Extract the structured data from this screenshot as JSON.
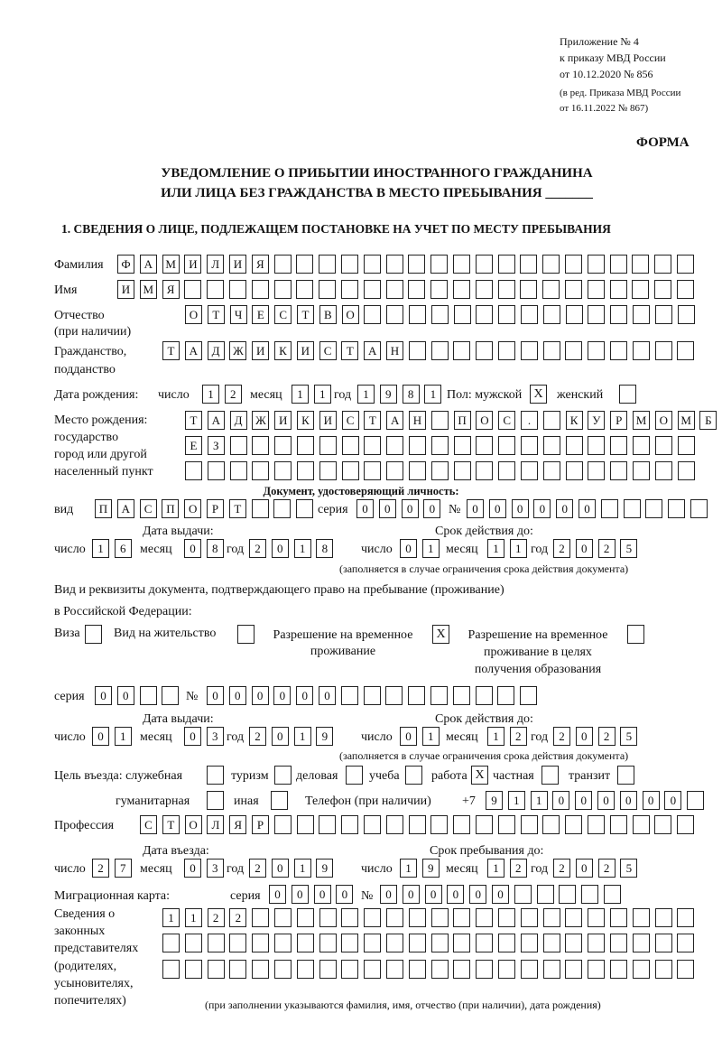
{
  "header": {
    "appendix": "Приложение № 4",
    "order": "к приказу МВД России",
    "order_date": "от 10.12.2020 № 856",
    "edition1": "(в ред. Приказа МВД России",
    "edition2": "от 16.11.2022 № 867)",
    "forma": "ФОРМА",
    "title1": "УВЕДОМЛЕНИЕ О ПРИБЫТИИ ИНОСТРАННОГО ГРАЖДАНИНА",
    "title2": "ИЛИ ЛИЦА БЕЗ ГРАЖДАНСТВА В МЕСТО ПРЕБЫВАНИЯ _______",
    "section1": "1. СВЕДЕНИЯ О ЛИЦЕ, ПОДЛЕЖАЩЕМ ПОСТАНОВКЕ НА УЧЕТ ПО МЕСТУ ПРЕБЫВАНИЯ"
  },
  "labels": {
    "surname": "Фамилия",
    "name": "Имя",
    "patronymic1": "Отчество",
    "patronymic2": "(при наличии)",
    "citizenship1": "Гражданство,",
    "citizenship2": "подданство",
    "dob": "Дата рождения:",
    "day": "число",
    "month": "месяц",
    "year": "год",
    "sex": "Пол: мужской",
    "female": "женский",
    "pob1": "Место рождения:",
    "pob2": "государство",
    "pob3": "город или другой",
    "pob4": "населенный пункт",
    "id_doc": "Документ, удостоверяющий личность:",
    "kind": "вид",
    "series": "серия",
    "number": "№",
    "issue_date": "Дата выдачи:",
    "valid_until": "Срок действия до:",
    "validity_note": "(заполняется в случае ограничения срока действия документа)",
    "stay_doc1": "Вид и реквизиты документа, подтверждающего право на пребывание (проживание)",
    "stay_doc2": "в Российской Федерации:",
    "visa": "Виза",
    "residence": "Вид на жительство",
    "trp1": "Разрешение на временное",
    "trp2": "проживание",
    "trp_edu1": "Разрешение на временное",
    "trp_edu2": "проживание в целях",
    "trp_edu3": "получения образования",
    "purpose": "Цель въезда: служебная",
    "tourism": "туризм",
    "business": "деловая",
    "study": "учеба",
    "work": "работа",
    "private": "частная",
    "transit": "транзит",
    "humanitarian": "гуманитарная",
    "other": "иная",
    "phone": "Телефон (при наличии)",
    "phone_prefix": "+7",
    "profession": "Профессия",
    "entry_date": "Дата въезда:",
    "stay_until": "Срок пребывания до:",
    "migration_card": "Миграционная карта:",
    "reps1": "Сведения о",
    "reps2": "законных",
    "reps3": "представителях",
    "reps4": "(родителях,",
    "reps5": "усыновителях,",
    "reps6": "попечителях)",
    "reps_note": "(при заполнении указываются фамилия, имя, отчество (при наличии), дата рождения)"
  },
  "person": {
    "surname": "ФАМИЛИЯ",
    "name": "ИМЯ",
    "patronymic": "ОТЧЕСТВО",
    "citizenship": "ТАДЖИКИСТАН",
    "dob_day": "12",
    "dob_month": "11",
    "dob_year": "1981",
    "sex_male": "X",
    "sex_female": "",
    "pob_line1": "ТАДЖИКИСТАН ПОС. КУРМОМБ",
    "pob_line2": "ЕЗ",
    "pob_line3": ""
  },
  "id_document": {
    "kind": "ПАСПОРТ",
    "series": "0000",
    "number": "000000",
    "issue_day": "16",
    "issue_month": "08",
    "issue_year": "2018",
    "valid_day": "01",
    "valid_month": "11",
    "valid_year": "2025"
  },
  "stay_document": {
    "visa": "",
    "residence": "",
    "trp": "X",
    "trp_edu": "",
    "series": "00",
    "number": "000000",
    "issue_day": "01",
    "issue_month": "03",
    "issue_year": "2019",
    "valid_day": "01",
    "valid_month": "12",
    "valid_year": "2025"
  },
  "purpose": {
    "official": "",
    "tourism": "",
    "business": "",
    "study": "",
    "work": "X",
    "private": "",
    "transit": "",
    "humanitarian": "",
    "other": ""
  },
  "phone": "911000000",
  "profession": "СТОЛЯР",
  "entry": {
    "day": "27",
    "month": "03",
    "year": "2019",
    "until_day": "19",
    "until_month": "12",
    "until_year": "2025"
  },
  "migration_card": {
    "series": "0000",
    "number": "000000"
  },
  "representatives": {
    "line1": "1122",
    "line2": "",
    "line3": ""
  }
}
